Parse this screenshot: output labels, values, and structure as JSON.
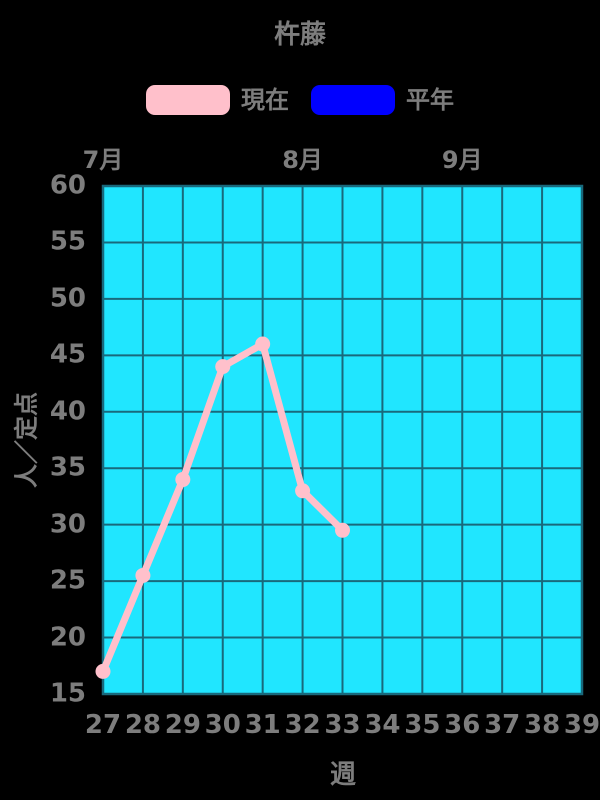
{
  "page": {
    "background_color": "#000000",
    "text_color": "#7D7D7D"
  },
  "chart_data": {
    "type": "line",
    "title": "杵藤",
    "xlabel": "週",
    "ylabel": "人／定点",
    "xlim": [
      27,
      39
    ],
    "ylim": [
      15,
      60
    ],
    "x_ticks": [
      27,
      28,
      29,
      30,
      31,
      32,
      33,
      34,
      35,
      36,
      37,
      38,
      39
    ],
    "y_ticks": [
      15,
      20,
      25,
      30,
      35,
      40,
      45,
      50,
      55,
      60
    ],
    "month_ticks": [
      {
        "label": "7月",
        "week": 27
      },
      {
        "label": "8月",
        "week": 32
      },
      {
        "label": "9月",
        "week": 36
      }
    ],
    "grid": true,
    "legend_position": "top-center",
    "plot_background_color": "#20E6FF",
    "grid_color": "#19697C",
    "series": [
      {
        "name": "現在",
        "color": "#FFC0CB",
        "marker": "circle",
        "x": [
          27,
          28,
          29,
          30,
          31,
          32,
          33
        ],
        "y": [
          17,
          25.5,
          34,
          44,
          46,
          33,
          29.5
        ]
      },
      {
        "name": "平年",
        "color": "#0000FF",
        "marker": "none",
        "x": [],
        "y": []
      }
    ]
  }
}
